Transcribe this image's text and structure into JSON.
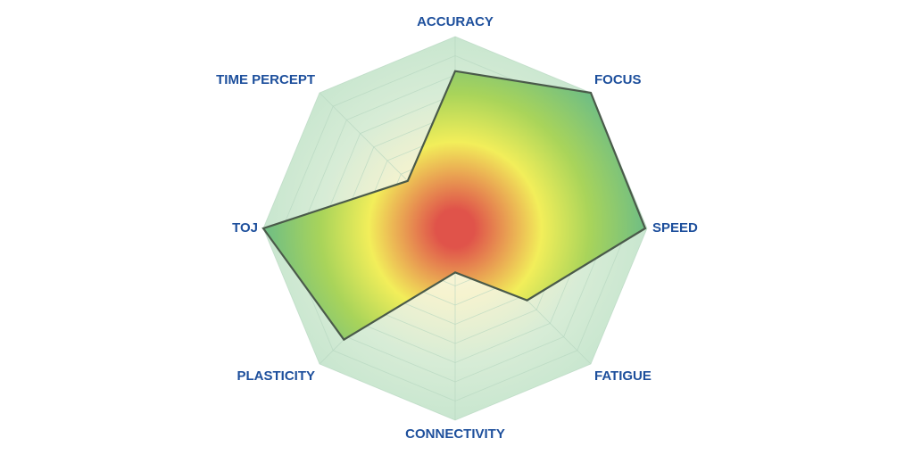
{
  "chart_data": {
    "type": "radar",
    "title": "",
    "axes": [
      "ACCURACY",
      "FOCUS",
      "SPEED",
      "FATIGUE",
      "CONNECTIVITY",
      "PLASTICITY",
      "TIME PERCEPT",
      "TOJ"
    ],
    "series": [
      {
        "values": [
          0.82,
          1.0,
          0.99,
          0.53,
          0.23,
          0.82,
          1.0,
          0.35
        ]
      }
    ],
    "range": [
      0,
      1
    ],
    "grid_rings": 10,
    "grid": true,
    "legend": "none"
  },
  "colors": {
    "outer_fill": "#cfe9d6",
    "grid_line": "#b5d5bf",
    "series_stroke": "#4a5a4a",
    "gradient_center": "#e0534a",
    "gradient_mid": "#f2ee5a",
    "gradient_outer": "#6dbd86",
    "label": "#1d4f9c"
  }
}
